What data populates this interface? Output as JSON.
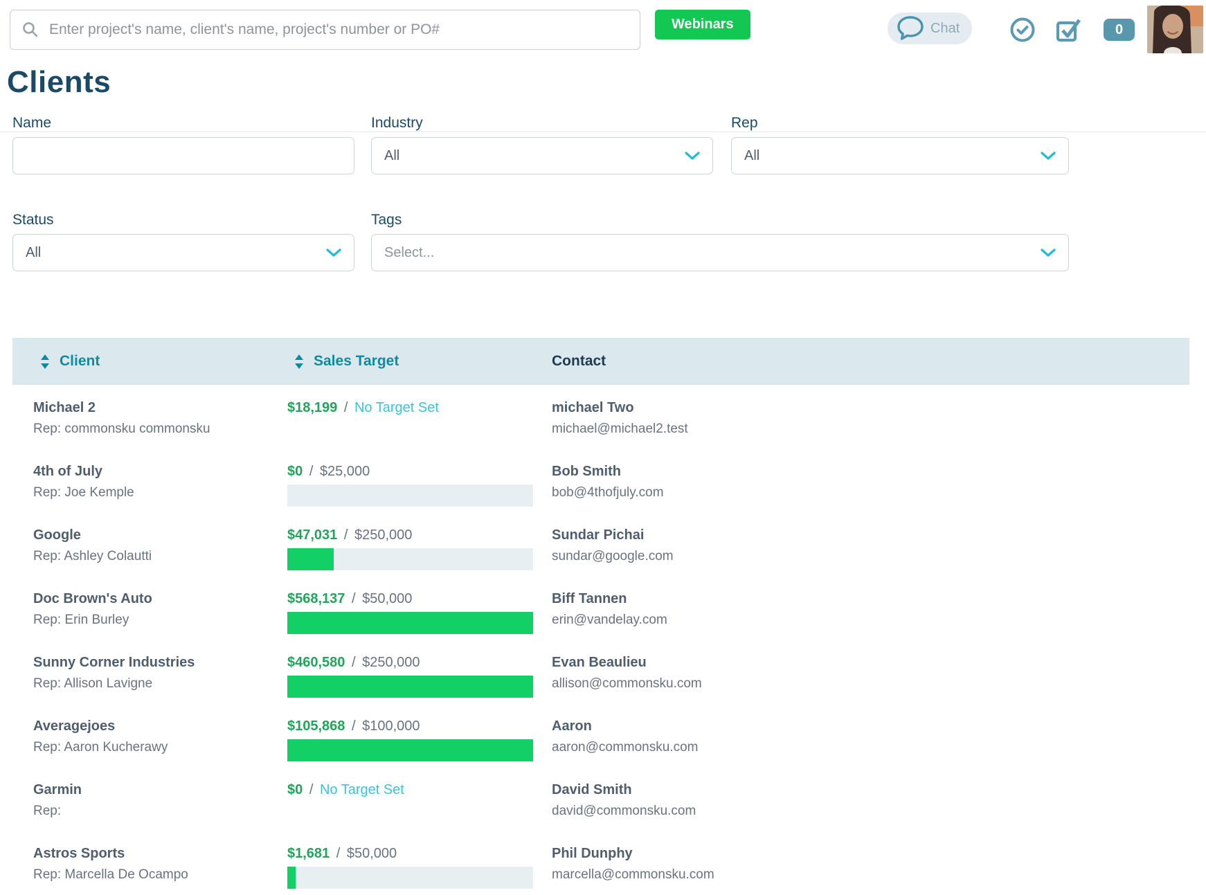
{
  "topbar": {
    "search_placeholder": "Enter project's name, client's name, project's number or PO#",
    "webinars_label": "Webinars",
    "chat_label": "Chat",
    "notification_count": "0",
    "icons": {
      "search": "magnifier-icon",
      "chat": "speech-bubble-icon",
      "approve": "circle-check-icon",
      "tasks": "checkbox-check-icon",
      "avatar": "user-photo"
    }
  },
  "page": {
    "title": "Clients"
  },
  "filters": {
    "name": {
      "label": "Name",
      "value": ""
    },
    "industry": {
      "label": "Industry",
      "value": "All"
    },
    "rep": {
      "label": "Rep",
      "value": "All"
    },
    "status": {
      "label": "Status",
      "value": "All"
    },
    "tags": {
      "label": "Tags",
      "placeholder": "Select..."
    }
  },
  "table": {
    "headers": {
      "client": "Client",
      "sales_target": "Sales Target",
      "contact": "Contact"
    },
    "separator": "/",
    "rows": [
      {
        "client": "Michael 2",
        "rep": "Rep: commonsku commonsku",
        "sales_current": "$18,199",
        "sales_target": "No Target Set",
        "target_is_link": true,
        "progress_pct": null,
        "contact_name": "michael Two",
        "contact_email": "michael@michael2.test"
      },
      {
        "client": "4th of July",
        "rep": "Rep: Joe Kemple",
        "sales_current": "$0",
        "sales_target": "$25,000",
        "target_is_link": false,
        "progress_pct": 0,
        "contact_name": "Bob Smith",
        "contact_email": "bob@4thofjuly.com"
      },
      {
        "client": "Google",
        "rep": "Rep: Ashley Colautti",
        "sales_current": "$47,031",
        "sales_target": "$250,000",
        "target_is_link": false,
        "progress_pct": 18.8,
        "contact_name": "Sundar Pichai",
        "contact_email": "sundar@google.com"
      },
      {
        "client": "Doc Brown's Auto",
        "rep": "Rep: Erin Burley",
        "sales_current": "$568,137",
        "sales_target": "$50,000",
        "target_is_link": false,
        "progress_pct": 100,
        "contact_name": "Biff Tannen",
        "contact_email": "erin@vandelay.com"
      },
      {
        "client": "Sunny Corner Industries",
        "rep": "Rep: Allison Lavigne",
        "sales_current": "$460,580",
        "sales_target": "$250,000",
        "target_is_link": false,
        "progress_pct": 100,
        "contact_name": "Evan Beaulieu",
        "contact_email": "allison@commonsku.com"
      },
      {
        "client": "Averagejoes",
        "rep": "Rep: Aaron Kucherawy",
        "sales_current": "$105,868",
        "sales_target": "$100,000",
        "target_is_link": false,
        "progress_pct": 100,
        "contact_name": "Aaron",
        "contact_email": "aaron@commonsku.com"
      },
      {
        "client": "Garmin",
        "rep": "Rep:",
        "sales_current": "$0",
        "sales_target": "No Target Set",
        "target_is_link": true,
        "progress_pct": null,
        "contact_name": "David Smith",
        "contact_email": "david@commonsku.com"
      },
      {
        "client": "Astros Sports",
        "rep": "Rep: Marcella De Ocampo",
        "sales_current": "$1,681",
        "sales_target": "$50,000",
        "target_is_link": false,
        "progress_pct": 3.4,
        "contact_name": "Phil Dunphy",
        "contact_email": "marcella@commonsku.com"
      }
    ]
  },
  "colors": {
    "accent_green": "#12c853",
    "bar_green": "#13d066",
    "money_green": "#21a55b",
    "teal_header": "#0f8ba0",
    "link_teal": "#38c4db",
    "navy": "#1a4a68",
    "icon_steel_blue": "#5b9ab1",
    "table_header_bg": "#dbe8ee",
    "progress_track": "#e8eff3"
  }
}
